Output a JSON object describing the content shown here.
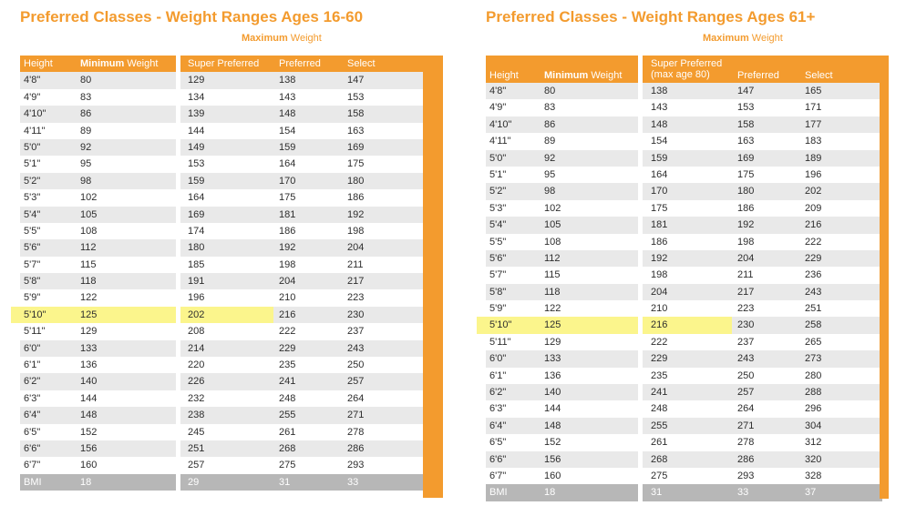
{
  "tables": [
    {
      "title": "Preferred Classes - Weight Ranges Ages 16-60",
      "max_weight_bold": "Maximum",
      "max_weight_rest": " Weight",
      "headers": {
        "height": "Height",
        "min_bold": "Minimum",
        "min_rest": " Weight",
        "super_preferred": "Super Preferred",
        "super_preferred_sub": "",
        "preferred": "Preferred",
        "select": "Select"
      },
      "rows": [
        [
          "4'8\"",
          "80",
          "129",
          "138",
          "147"
        ],
        [
          "4'9\"",
          "83",
          "134",
          "143",
          "153"
        ],
        [
          "4'10\"",
          "86",
          "139",
          "148",
          "158"
        ],
        [
          "4'11\"",
          "89",
          "144",
          "154",
          "163"
        ],
        [
          "5'0\"",
          "92",
          "149",
          "159",
          "169"
        ],
        [
          "5'1\"",
          "95",
          "153",
          "164",
          "175"
        ],
        [
          "5'2\"",
          "98",
          "159",
          "170",
          "180"
        ],
        [
          "5'3\"",
          "102",
          "164",
          "175",
          "186"
        ],
        [
          "5'4\"",
          "105",
          "169",
          "181",
          "192"
        ],
        [
          "5'5\"",
          "108",
          "174",
          "186",
          "198"
        ],
        [
          "5'6\"",
          "112",
          "180",
          "192",
          "204"
        ],
        [
          "5'7\"",
          "115",
          "185",
          "198",
          "211"
        ],
        [
          "5'8\"",
          "118",
          "191",
          "204",
          "217"
        ],
        [
          "5'9\"",
          "122",
          "196",
          "210",
          "223"
        ],
        [
          "5'10\"",
          "125",
          "202",
          "216",
          "230"
        ],
        [
          "5'11\"",
          "129",
          "208",
          "222",
          "237"
        ],
        [
          "6'0\"",
          "133",
          "214",
          "229",
          "243"
        ],
        [
          "6'1\"",
          "136",
          "220",
          "235",
          "250"
        ],
        [
          "6'2\"",
          "140",
          "226",
          "241",
          "257"
        ],
        [
          "6'3\"",
          "144",
          "232",
          "248",
          "264"
        ],
        [
          "6'4\"",
          "148",
          "238",
          "255",
          "271"
        ],
        [
          "6'5\"",
          "152",
          "245",
          "261",
          "278"
        ],
        [
          "6'6\"",
          "156",
          "251",
          "268",
          "286"
        ],
        [
          "6'7\"",
          "160",
          "257",
          "275",
          "293"
        ]
      ],
      "bmi": [
        "BMI",
        "18",
        "29",
        "31",
        "33"
      ],
      "highlight_row_index": 14
    },
    {
      "title": "Preferred Classes - Weight Ranges Ages 61+",
      "max_weight_bold": "Maximum",
      "max_weight_rest": " Weight",
      "headers": {
        "height": "Height",
        "min_bold": "Minimum",
        "min_rest": " Weight",
        "super_preferred": "Super Preferred",
        "super_preferred_sub": "(max age 80)",
        "preferred": "Preferred",
        "select": "Select"
      },
      "rows": [
        [
          "4'8\"",
          "80",
          "138",
          "147",
          "165"
        ],
        [
          "4'9\"",
          "83",
          "143",
          "153",
          "171"
        ],
        [
          "4'10\"",
          "86",
          "148",
          "158",
          "177"
        ],
        [
          "4'11\"",
          "89",
          "154",
          "163",
          "183"
        ],
        [
          "5'0\"",
          "92",
          "159",
          "169",
          "189"
        ],
        [
          "5'1\"",
          "95",
          "164",
          "175",
          "196"
        ],
        [
          "5'2\"",
          "98",
          "170",
          "180",
          "202"
        ],
        [
          "5'3\"",
          "102",
          "175",
          "186",
          "209"
        ],
        [
          "5'4\"",
          "105",
          "181",
          "192",
          "216"
        ],
        [
          "5'5\"",
          "108",
          "186",
          "198",
          "222"
        ],
        [
          "5'6\"",
          "112",
          "192",
          "204",
          "229"
        ],
        [
          "5'7\"",
          "115",
          "198",
          "211",
          "236"
        ],
        [
          "5'8\"",
          "118",
          "204",
          "217",
          "243"
        ],
        [
          "5'9\"",
          "122",
          "210",
          "223",
          "251"
        ],
        [
          "5'10\"",
          "125",
          "216",
          "230",
          "258"
        ],
        [
          "5'11\"",
          "129",
          "222",
          "237",
          "265"
        ],
        [
          "6'0\"",
          "133",
          "229",
          "243",
          "273"
        ],
        [
          "6'1\"",
          "136",
          "235",
          "250",
          "280"
        ],
        [
          "6'2\"",
          "140",
          "241",
          "257",
          "288"
        ],
        [
          "6'3\"",
          "144",
          "248",
          "264",
          "296"
        ],
        [
          "6'4\"",
          "148",
          "255",
          "271",
          "304"
        ],
        [
          "6'5\"",
          "152",
          "261",
          "278",
          "312"
        ],
        [
          "6'6\"",
          "156",
          "268",
          "286",
          "320"
        ],
        [
          "6'7\"",
          "160",
          "275",
          "293",
          "328"
        ]
      ],
      "bmi": [
        "BMI",
        "18",
        "31",
        "33",
        "37"
      ],
      "highlight_row_index": 14
    }
  ],
  "colors": {
    "accent": "#f39b2e",
    "stripe": "#e9e9e9",
    "bmi_row": "#b7b7b7",
    "highlight": "#fbf58c"
  }
}
